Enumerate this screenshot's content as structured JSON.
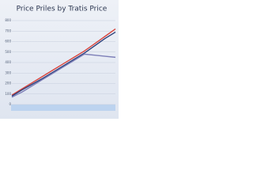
{
  "chart_data": {
    "type": "line",
    "title": "Price Priles by Tratis Price",
    "x": [
      0,
      1,
      2,
      3,
      4,
      5,
      6,
      7,
      8,
      9,
      10
    ],
    "xlim": [
      0,
      10
    ],
    "ylim": [
      0,
      800
    ],
    "yticks": [
      0,
      100,
      200,
      300,
      400,
      500,
      600,
      700,
      800
    ],
    "grid": true,
    "series": [
      {
        "color": "#d9443c",
        "values": [
          90,
          150,
          210,
          270,
          330,
          390,
          450,
          510,
          580,
          650,
          720
        ]
      },
      {
        "color": "#2b3f7a",
        "values": [
          80,
          140,
          195,
          250,
          310,
          370,
          430,
          490,
          560,
          630,
          690
        ]
      },
      {
        "color": "#7d7fb8",
        "values": [
          70,
          120,
          180,
          240,
          300,
          360,
          420,
          480,
          470,
          460,
          450
        ]
      }
    ]
  }
}
